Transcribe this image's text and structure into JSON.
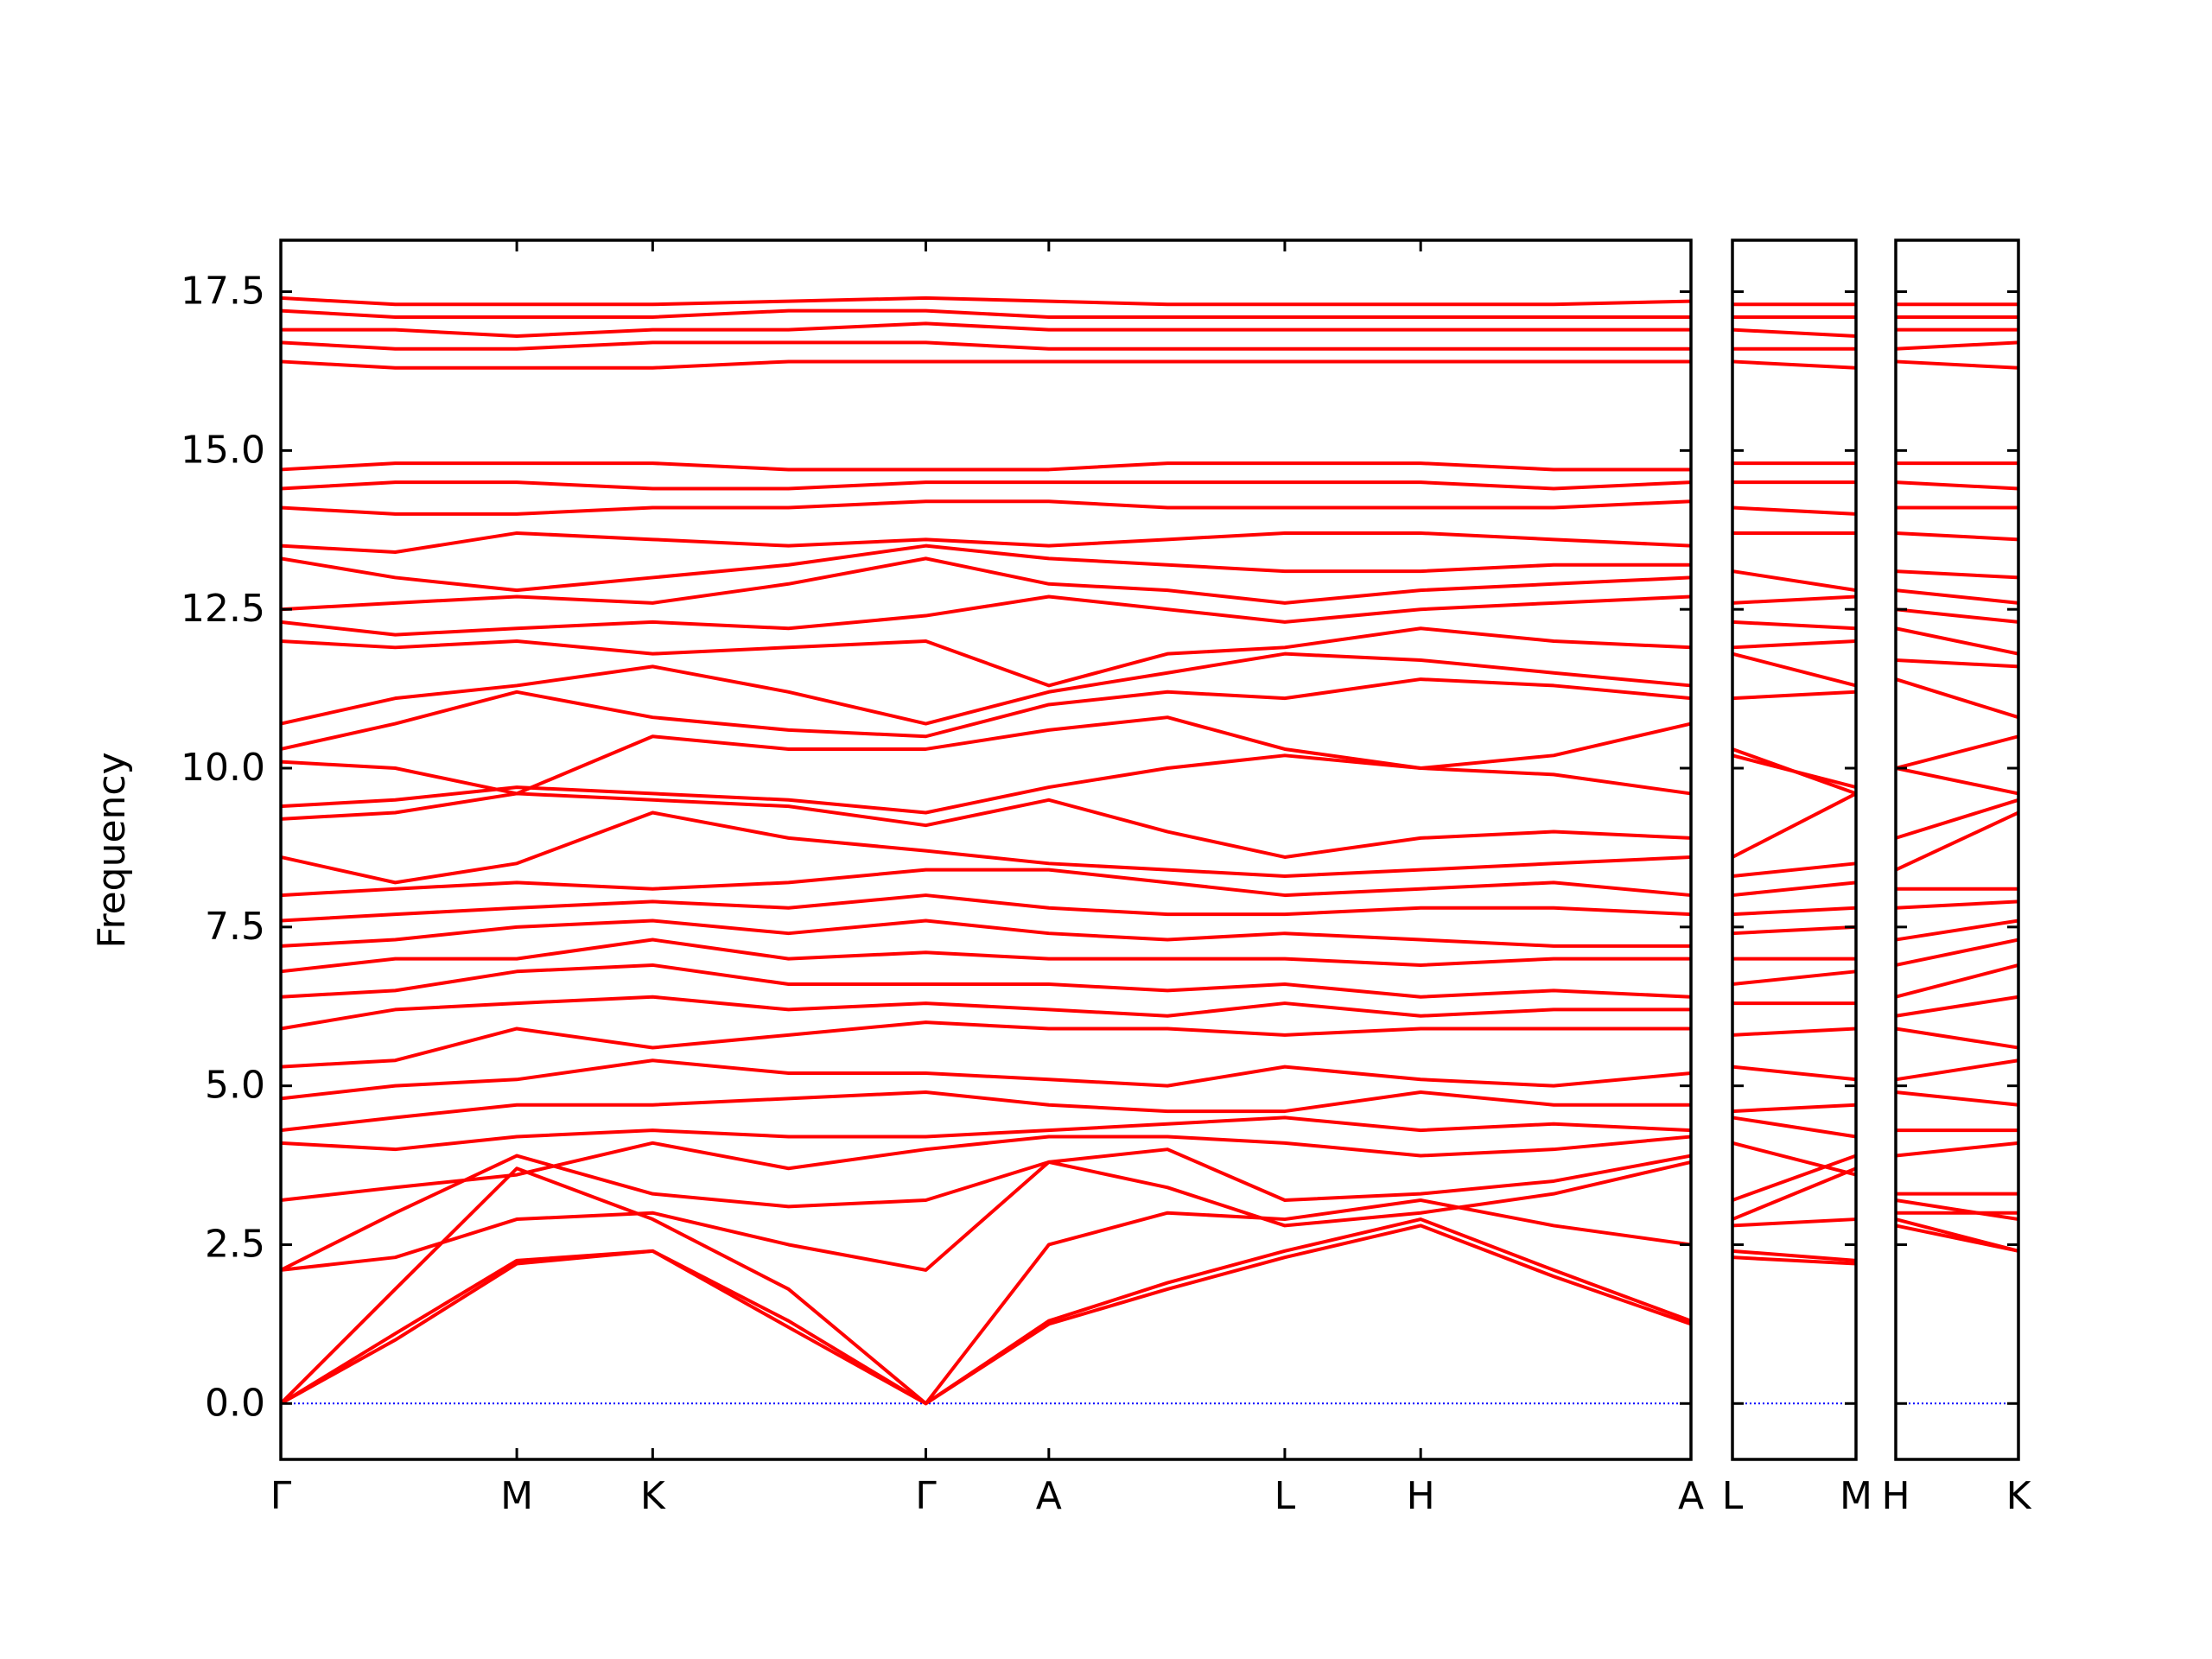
{
  "chart_data": [
    {
      "type": "line",
      "ylabel": "Frequency",
      "color": "#ff0000",
      "x": [
        0,
        0.8,
        1.65,
        2.6,
        3.55,
        4.51,
        5.37,
        6.2,
        7.02,
        7.97,
        8.9,
        9.86
      ],
      "xlim": [
        0,
        9.86
      ],
      "xticks": [
        {
          "value": 0,
          "label": "Γ"
        },
        {
          "value": 1.65,
          "label": "M"
        },
        {
          "value": 2.6,
          "label": "K"
        },
        {
          "value": 4.51,
          "label": "Γ"
        },
        {
          "value": 5.37,
          "label": "A"
        },
        {
          "value": 7.02,
          "label": "L"
        },
        {
          "value": 7.97,
          "label": "H"
        },
        {
          "value": 9.86,
          "label": "A"
        }
      ],
      "ylim": [
        -0.88,
        18.31
      ],
      "yticks": [
        {
          "value": 0,
          "label": "0.0"
        },
        2.5,
        {
          "value": 5,
          "label": "5.0"
        },
        7.5,
        {
          "value": 10,
          "label": "10.0"
        },
        12.5,
        {
          "value": 15,
          "label": "15.0"
        },
        17.5
      ],
      "zero_line": 0,
      "zero_line_color": "#0000ff",
      "series": [
        {
          "values": [
            0,
            1.0,
            2.2,
            2.4,
            1.2,
            0,
            1.25,
            1.8,
            2.3,
            2.8,
            2.0,
            1.25
          ]
        },
        {
          "values": [
            0,
            1.1,
            2.25,
            2.4,
            1.3,
            0,
            1.3,
            1.9,
            2.4,
            2.9,
            2.1,
            1.3
          ]
        },
        {
          "values": [
            0,
            1.8,
            3.7,
            2.9,
            1.8,
            0,
            2.5,
            3.0,
            2.9,
            3.2,
            2.8,
            2.5
          ]
        },
        {
          "values": [
            2.1,
            2.3,
            2.9,
            3.0,
            2.5,
            2.1,
            3.8,
            3.4,
            2.8,
            3.0,
            3.3,
            3.8
          ]
        },
        {
          "values": [
            2.1,
            3.0,
            3.9,
            3.3,
            3.1,
            3.2,
            3.8,
            4.0,
            3.2,
            3.3,
            3.5,
            3.9
          ]
        },
        {
          "values": [
            3.2,
            3.4,
            3.6,
            4.1,
            3.7,
            4.0,
            4.2,
            4.2,
            4.1,
            3.9,
            4.0,
            4.2
          ]
        },
        {
          "values": [
            4.1,
            4.0,
            4.2,
            4.3,
            4.2,
            4.2,
            4.3,
            4.4,
            4.5,
            4.3,
            4.4,
            4.3
          ]
        },
        {
          "values": [
            4.3,
            4.5,
            4.7,
            4.7,
            4.8,
            4.9,
            4.7,
            4.6,
            4.6,
            4.9,
            4.7,
            4.7
          ]
        },
        {
          "values": [
            4.8,
            5.0,
            5.1,
            5.4,
            5.2,
            5.2,
            5.1,
            5.0,
            5.3,
            5.1,
            5.0,
            5.2
          ]
        },
        {
          "values": [
            5.3,
            5.4,
            5.9,
            5.6,
            5.8,
            6.0,
            5.9,
            5.9,
            5.8,
            5.9,
            5.9,
            5.9
          ]
        },
        {
          "values": [
            5.9,
            6.2,
            6.3,
            6.4,
            6.2,
            6.3,
            6.2,
            6.1,
            6.3,
            6.1,
            6.2,
            6.2
          ]
        },
        {
          "values": [
            6.4,
            6.5,
            6.8,
            6.9,
            6.6,
            6.6,
            6.6,
            6.5,
            6.6,
            6.4,
            6.5,
            6.4
          ]
        },
        {
          "values": [
            6.8,
            7.0,
            7.0,
            7.3,
            7.0,
            7.1,
            7.0,
            7.0,
            7.0,
            6.9,
            7.0,
            7.0
          ]
        },
        {
          "values": [
            7.2,
            7.3,
            7.5,
            7.6,
            7.4,
            7.6,
            7.4,
            7.3,
            7.4,
            7.3,
            7.2,
            7.2
          ]
        },
        {
          "values": [
            7.6,
            7.7,
            7.8,
            7.9,
            7.8,
            8.0,
            7.8,
            7.7,
            7.7,
            7.8,
            7.8,
            7.7
          ]
        },
        {
          "values": [
            8.0,
            8.1,
            8.2,
            8.1,
            8.2,
            8.4,
            8.4,
            8.2,
            8.0,
            8.1,
            8.2,
            8.0
          ]
        },
        {
          "values": [
            8.6,
            8.2,
            8.5,
            9.3,
            8.9,
            8.7,
            8.5,
            8.4,
            8.3,
            8.4,
            8.5,
            8.6
          ]
        },
        {
          "values": [
            9.2,
            9.3,
            9.6,
            9.5,
            9.4,
            9.1,
            9.5,
            9.0,
            8.6,
            8.9,
            9.0,
            8.9
          ]
        },
        {
          "values": [
            9.4,
            9.5,
            9.7,
            9.6,
            9.5,
            9.3,
            9.7,
            10.0,
            10.2,
            10.0,
            9.9,
            9.6
          ]
        },
        {
          "values": [
            10.1,
            10.0,
            9.6,
            10.5,
            10.3,
            10.3,
            10.6,
            10.8,
            10.3,
            10.0,
            10.2,
            10.7
          ]
        },
        {
          "values": [
            10.3,
            10.7,
            11.2,
            10.8,
            10.6,
            10.5,
            11.0,
            11.2,
            11.1,
            11.4,
            11.3,
            11.1
          ]
        },
        {
          "values": [
            10.7,
            11.1,
            11.3,
            11.6,
            11.2,
            10.7,
            11.2,
            11.5,
            11.8,
            11.7,
            11.5,
            11.3
          ]
        },
        {
          "values": [
            12.0,
            11.9,
            12.0,
            11.8,
            11.9,
            12.0,
            11.3,
            11.8,
            11.9,
            12.2,
            12.0,
            11.9
          ]
        },
        {
          "values": [
            12.3,
            12.1,
            12.2,
            12.3,
            12.2,
            12.4,
            12.7,
            12.5,
            12.3,
            12.5,
            12.6,
            12.7
          ]
        },
        {
          "values": [
            12.5,
            12.6,
            12.7,
            12.6,
            12.9,
            13.3,
            12.9,
            12.8,
            12.6,
            12.8,
            12.9,
            13.0
          ]
        },
        {
          "values": [
            13.3,
            13.0,
            12.8,
            13.0,
            13.2,
            13.5,
            13.3,
            13.2,
            13.1,
            13.1,
            13.2,
            13.2
          ]
        },
        {
          "values": [
            13.5,
            13.4,
            13.7,
            13.6,
            13.5,
            13.6,
            13.5,
            13.6,
            13.7,
            13.7,
            13.6,
            13.5
          ]
        },
        {
          "values": [
            14.1,
            14.0,
            14.0,
            14.1,
            14.1,
            14.2,
            14.2,
            14.1,
            14.1,
            14.1,
            14.1,
            14.2
          ]
        },
        {
          "values": [
            14.4,
            14.5,
            14.5,
            14.4,
            14.4,
            14.5,
            14.5,
            14.5,
            14.5,
            14.5,
            14.4,
            14.5
          ]
        },
        {
          "values": [
            14.7,
            14.8,
            14.8,
            14.8,
            14.7,
            14.7,
            14.7,
            14.8,
            14.8,
            14.8,
            14.7,
            14.7
          ]
        },
        {
          "values": [
            16.4,
            16.3,
            16.3,
            16.3,
            16.4,
            16.4,
            16.4,
            16.4,
            16.4,
            16.4,
            16.4,
            16.4
          ]
        },
        {
          "values": [
            16.7,
            16.6,
            16.6,
            16.7,
            16.7,
            16.7,
            16.6,
            16.6,
            16.6,
            16.6,
            16.6,
            16.6
          ]
        },
        {
          "values": [
            16.9,
            16.9,
            16.8,
            16.9,
            16.9,
            17.0,
            16.9,
            16.9,
            16.9,
            16.9,
            16.9,
            16.9
          ]
        },
        {
          "values": [
            17.2,
            17.1,
            17.1,
            17.1,
            17.2,
            17.2,
            17.1,
            17.1,
            17.1,
            17.1,
            17.1,
            17.1
          ]
        },
        {
          "values": [
            17.4,
            17.3,
            17.3,
            17.3,
            17.35,
            17.4,
            17.35,
            17.3,
            17.3,
            17.3,
            17.3,
            17.35
          ]
        }
      ]
    },
    {
      "type": "line",
      "color": "#ff0000",
      "x": [
        0,
        0.86
      ],
      "xlim": [
        0,
        0.86
      ],
      "xticks": [
        {
          "value": 0,
          "label": "L"
        },
        {
          "value": 0.86,
          "label": "M"
        }
      ],
      "ylim": [
        -0.88,
        18.31
      ],
      "yticks": [
        {
          "value": 0,
          "label": "0.0"
        },
        2.5,
        {
          "value": 5,
          "label": "5.0"
        },
        7.5,
        {
          "value": 10,
          "label": "10.0"
        },
        12.5,
        {
          "value": 15,
          "label": "15.0"
        },
        17.5
      ],
      "ytick_labels": false,
      "zero_line": 0,
      "zero_line_color": "#0000ff",
      "series": [
        {
          "values": [
            2.3,
            2.2
          ]
        },
        {
          "values": [
            2.4,
            2.25
          ]
        },
        {
          "values": [
            2.9,
            3.7
          ]
        },
        {
          "values": [
            2.8,
            2.9
          ]
        },
        {
          "values": [
            3.2,
            3.9
          ]
        },
        {
          "values": [
            4.1,
            3.6
          ]
        },
        {
          "values": [
            4.5,
            4.2
          ]
        },
        {
          "values": [
            4.6,
            4.7
          ]
        },
        {
          "values": [
            5.3,
            5.1
          ]
        },
        {
          "values": [
            5.8,
            5.9
          ]
        },
        {
          "values": [
            6.3,
            6.3
          ]
        },
        {
          "values": [
            6.6,
            6.8
          ]
        },
        {
          "values": [
            7.0,
            7.0
          ]
        },
        {
          "values": [
            7.4,
            7.5
          ]
        },
        {
          "values": [
            7.7,
            7.8
          ]
        },
        {
          "values": [
            8.0,
            8.2
          ]
        },
        {
          "values": [
            8.3,
            8.5
          ]
        },
        {
          "values": [
            8.6,
            9.6
          ]
        },
        {
          "values": [
            10.2,
            9.7
          ]
        },
        {
          "values": [
            10.3,
            9.6
          ]
        },
        {
          "values": [
            11.1,
            11.2
          ]
        },
        {
          "values": [
            11.8,
            11.3
          ]
        },
        {
          "values": [
            11.9,
            12.0
          ]
        },
        {
          "values": [
            12.3,
            12.2
          ]
        },
        {
          "values": [
            12.6,
            12.7
          ]
        },
        {
          "values": [
            13.1,
            12.8
          ]
        },
        {
          "values": [
            13.7,
            13.7
          ]
        },
        {
          "values": [
            14.1,
            14.0
          ]
        },
        {
          "values": [
            14.5,
            14.5
          ]
        },
        {
          "values": [
            14.8,
            14.8
          ]
        },
        {
          "values": [
            16.4,
            16.3
          ]
        },
        {
          "values": [
            16.6,
            16.6
          ]
        },
        {
          "values": [
            16.9,
            16.8
          ]
        },
        {
          "values": [
            17.1,
            17.1
          ]
        },
        {
          "values": [
            17.3,
            17.3
          ]
        }
      ]
    },
    {
      "type": "line",
      "color": "#ff0000",
      "x": [
        0,
        0.86
      ],
      "xlim": [
        0,
        0.86
      ],
      "xticks": [
        {
          "value": 0,
          "label": "H"
        },
        {
          "value": 0.86,
          "label": "K"
        }
      ],
      "ylim": [
        -0.88,
        18.31
      ],
      "yticks": [
        {
          "value": 0,
          "label": "0.0"
        },
        2.5,
        {
          "value": 5,
          "label": "5.0"
        },
        7.5,
        {
          "value": 10,
          "label": "10.0"
        },
        12.5,
        {
          "value": 15,
          "label": "15.0"
        },
        17.5
      ],
      "ytick_labels": false,
      "zero_line": 0,
      "zero_line_color": "#0000ff",
      "series": [
        {
          "values": [
            2.8,
            2.4
          ]
        },
        {
          "values": [
            2.9,
            2.4
          ]
        },
        {
          "values": [
            3.2,
            2.9
          ]
        },
        {
          "values": [
            3.0,
            3.0
          ]
        },
        {
          "values": [
            3.3,
            3.3
          ]
        },
        {
          "values": [
            3.9,
            4.1
          ]
        },
        {
          "values": [
            4.3,
            4.3
          ]
        },
        {
          "values": [
            4.9,
            4.7
          ]
        },
        {
          "values": [
            5.1,
            5.4
          ]
        },
        {
          "values": [
            5.9,
            5.6
          ]
        },
        {
          "values": [
            6.1,
            6.4
          ]
        },
        {
          "values": [
            6.4,
            6.9
          ]
        },
        {
          "values": [
            6.9,
            7.3
          ]
        },
        {
          "values": [
            7.3,
            7.6
          ]
        },
        {
          "values": [
            7.8,
            7.9
          ]
        },
        {
          "values": [
            8.1,
            8.1
          ]
        },
        {
          "values": [
            8.4,
            9.3
          ]
        },
        {
          "values": [
            8.9,
            9.5
          ]
        },
        {
          "values": [
            10.0,
            9.6
          ]
        },
        {
          "values": [
            10.0,
            10.5
          ]
        },
        {
          "values": [
            11.4,
            10.8
          ]
        },
        {
          "values": [
            11.7,
            11.6
          ]
        },
        {
          "values": [
            12.2,
            11.8
          ]
        },
        {
          "values": [
            12.5,
            12.3
          ]
        },
        {
          "values": [
            12.8,
            12.6
          ]
        },
        {
          "values": [
            13.1,
            13.0
          ]
        },
        {
          "values": [
            13.7,
            13.6
          ]
        },
        {
          "values": [
            14.1,
            14.1
          ]
        },
        {
          "values": [
            14.5,
            14.4
          ]
        },
        {
          "values": [
            14.8,
            14.8
          ]
        },
        {
          "values": [
            16.4,
            16.3
          ]
        },
        {
          "values": [
            16.6,
            16.7
          ]
        },
        {
          "values": [
            16.9,
            16.9
          ]
        },
        {
          "values": [
            17.1,
            17.1
          ]
        },
        {
          "values": [
            17.3,
            17.3
          ]
        }
      ]
    }
  ]
}
